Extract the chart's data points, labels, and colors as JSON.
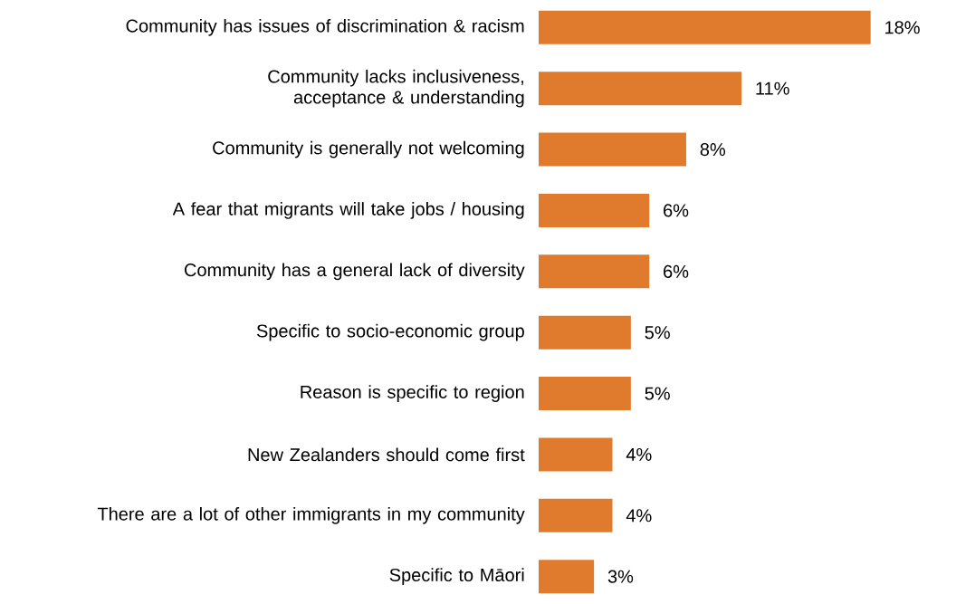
{
  "chart_data": {
    "type": "bar",
    "orientation": "horizontal",
    "color": "#e07b2e",
    "categories": [
      "Community has issues of discrimination & racism",
      "Community lacks inclusiveness, acceptance & understanding",
      "Community is generally not welcoming",
      "A fear that migrants will take jobs / housing",
      "Community has a general lack of diversity",
      "Specific to socio-economic group",
      "Reason is specific to region",
      "New Zealanders should come first",
      "There are a lot of other immigrants in my community",
      "Specific to Māori"
    ],
    "values": [
      18,
      11,
      8,
      6,
      6,
      5,
      5,
      4,
      4,
      3
    ],
    "value_labels": [
      "18%",
      "11%",
      "8%",
      "6%",
      "6%",
      "5%",
      "5%",
      "4%",
      "4%",
      "3%"
    ]
  }
}
